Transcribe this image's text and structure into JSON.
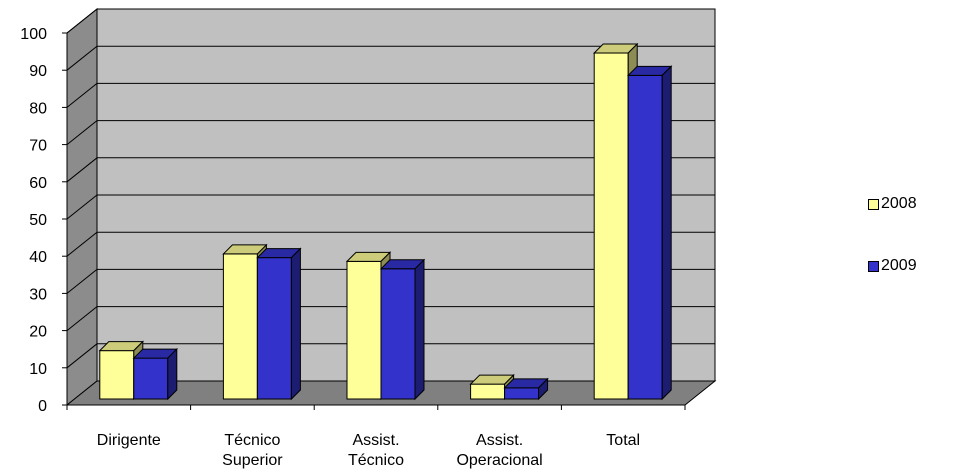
{
  "chart_data": {
    "type": "bar",
    "categories": [
      [
        "Dirigente"
      ],
      [
        "Técnico",
        "Superior"
      ],
      [
        "Assist.",
        "Técnico"
      ],
      [
        "Assist.",
        "Operacional"
      ],
      [
        "Total"
      ]
    ],
    "series": [
      {
        "name": "2008",
        "values": [
          13,
          39,
          37,
          4,
          93
        ],
        "color": "#ffff99"
      },
      {
        "name": "2009",
        "values": [
          11,
          38,
          35,
          3,
          87
        ],
        "color": "#3333cc"
      }
    ],
    "ylim": [
      0,
      100
    ],
    "yticks": [
      0,
      10,
      20,
      30,
      40,
      50,
      60,
      70,
      80,
      90,
      100
    ],
    "grid": true,
    "three_d": true,
    "wall_color": "#c0c0c0",
    "floor_color": "#808080",
    "legend_position": "right"
  }
}
